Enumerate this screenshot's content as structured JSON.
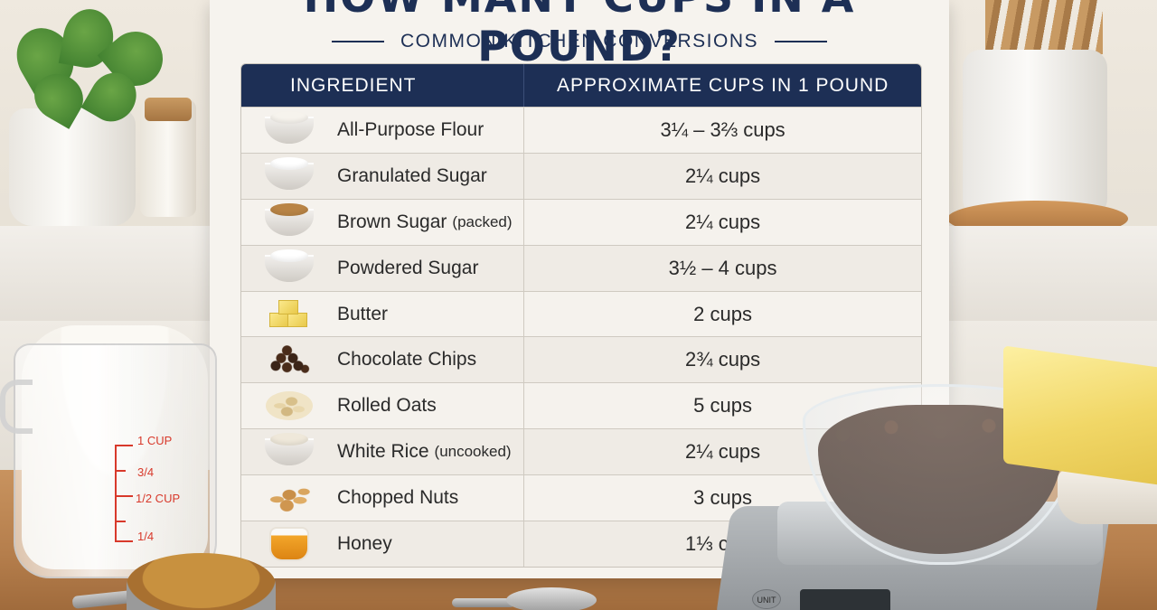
{
  "poster": {
    "title": "HOW MANY CUPS IN A POUND?",
    "subtitle": "COMMON KITCHEN CONVERSIONS"
  },
  "table": {
    "headers": [
      "INGREDIENT",
      "APPROXIMATE CUPS IN 1 POUND"
    ],
    "rows": [
      {
        "name": "All-Purpose Flour",
        "note": "",
        "cups": "3¼ – 3⅔ cups",
        "icon": "flour-bowl-icon",
        "fill": "#f6f3ed"
      },
      {
        "name": "Granulated Sugar",
        "note": "",
        "cups": "2¼ cups",
        "icon": "sugar-bowl-icon",
        "fill": "#ffffff"
      },
      {
        "name": "Brown Sugar",
        "note": "(packed)",
        "cups": "2¼ cups",
        "icon": "brown-sugar-bowl-icon",
        "fill": "#b98445"
      },
      {
        "name": "Powdered Sugar",
        "note": "",
        "cups": "3½ – 4 cups",
        "icon": "powdered-sugar-bowl-icon",
        "fill": "#ffffff"
      },
      {
        "name": "Butter",
        "note": "",
        "cups": "2 cups",
        "icon": "butter-cubes-icon",
        "fill": "#f4d35e"
      },
      {
        "name": "Chocolate Chips",
        "note": "",
        "cups": "2¾ cups",
        "icon": "chocolate-chips-icon",
        "fill": "#3b2417"
      },
      {
        "name": "Rolled Oats",
        "note": "",
        "cups": "5 cups",
        "icon": "rolled-oats-icon",
        "fill": "#e6d3a6"
      },
      {
        "name": "White Rice",
        "note": "(uncooked)",
        "cups": "2¼ cups",
        "icon": "rice-bowl-icon",
        "fill": "#efe8da"
      },
      {
        "name": "Chopped Nuts",
        "note": "",
        "cups": "3 cups",
        "icon": "nuts-icon",
        "fill": "#d9a55e"
      },
      {
        "name": "Honey",
        "note": "",
        "cups": "1⅓ cups",
        "icon": "honey-jar-icon",
        "fill": "#f3a62a"
      }
    ]
  },
  "measuring_cup": {
    "marks": [
      "1 CUP",
      "3/4",
      "1/2 CUP",
      "1/4"
    ]
  },
  "scale": {
    "unit_label": "UNIT"
  },
  "colors": {
    "navy": "#1d2f55",
    "measure_red": "#d8392b"
  }
}
